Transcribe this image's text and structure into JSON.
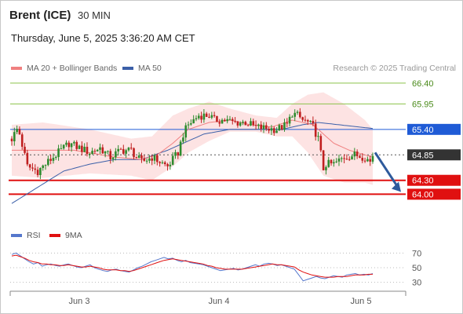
{
  "header": {
    "instrument": "Brent (ICE)",
    "timeframe": "30 MIN",
    "timestamp": "Thursday, June 5, 2025 3:36:20 AM CET"
  },
  "legend": {
    "ma20_label": "MA 20 + Bollinger Bands",
    "ma50_label": "MA 50",
    "credit": "Research © 2025 Trading Central"
  },
  "rsi_legend": {
    "rsi_label": "RSI",
    "ma_label": "9MA"
  },
  "colors": {
    "ma20": "#f08080",
    "band": "#fde3e3",
    "ma50": "#3b5fa8",
    "up": "#2e8b2e",
    "down": "#c02020",
    "resistance": "#8bc34a",
    "pivot": "#1f5bd6",
    "support": "#e01010",
    "arrow": "#2e5a9c"
  },
  "chart_data": [
    {
      "type": "candlestick",
      "x_labels": [
        "Jun 3",
        "Jun 4",
        "Jun 5"
      ],
      "ylim": [
        63.6,
        66.55
      ],
      "levels": [
        {
          "value": 66.4,
          "label": "66.40",
          "kind": "resistance"
        },
        {
          "value": 65.95,
          "label": "65.95",
          "kind": "resistance"
        },
        {
          "value": 65.4,
          "label": "65.40",
          "kind": "pivot"
        },
        {
          "value": 64.85,
          "label": "64.85",
          "kind": "last"
        },
        {
          "value": 64.3,
          "label": "64.30",
          "kind": "support"
        },
        {
          "value": 64.0,
          "label": "64.00",
          "kind": "support"
        }
      ],
      "forecast_arrow": {
        "from_value": 64.9,
        "to_value": 64.05
      },
      "close_path": [
        [
          0,
          65.2
        ],
        [
          2,
          65.4
        ],
        [
          3,
          65.3
        ],
        [
          6,
          64.6
        ],
        [
          10,
          64.5
        ],
        [
          14,
          64.7
        ],
        [
          18,
          64.9
        ],
        [
          22,
          65.1
        ],
        [
          26,
          65.0
        ],
        [
          30,
          64.9
        ],
        [
          34,
          65.0
        ],
        [
          38,
          64.8
        ],
        [
          42,
          64.95
        ],
        [
          46,
          64.95
        ],
        [
          48,
          64.8
        ],
        [
          50,
          64.7
        ],
        [
          54,
          64.8
        ],
        [
          60,
          64.6
        ],
        [
          64,
          64.9
        ],
        [
          66,
          65.3
        ],
        [
          68,
          65.5
        ],
        [
          72,
          65.7
        ],
        [
          76,
          65.7
        ],
        [
          78,
          65.6
        ],
        [
          82,
          65.6
        ],
        [
          86,
          65.55
        ],
        [
          90,
          65.55
        ],
        [
          94,
          65.45
        ],
        [
          98,
          65.42
        ],
        [
          102,
          65.4
        ],
        [
          104,
          65.45
        ],
        [
          106,
          65.5
        ],
        [
          108,
          65.75
        ],
        [
          110,
          65.7
        ],
        [
          112,
          65.6
        ],
        [
          114,
          65.55
        ],
        [
          116,
          65.45
        ],
        [
          118,
          65.2
        ],
        [
          120,
          64.55
        ],
        [
          121,
          64.65
        ],
        [
          124,
          64.65
        ],
        [
          128,
          64.8
        ],
        [
          132,
          64.85
        ],
        [
          136,
          64.8
        ],
        [
          138,
          64.7
        ],
        [
          139,
          64.85
        ]
      ],
      "ma20_path": [
        [
          0,
          64.95
        ],
        [
          12,
          64.95
        ],
        [
          24,
          64.95
        ],
        [
          40,
          64.8
        ],
        [
          50,
          64.75
        ],
        [
          56,
          64.85
        ],
        [
          62,
          65.1
        ],
        [
          68,
          65.4
        ],
        [
          76,
          65.55
        ],
        [
          84,
          65.6
        ],
        [
          92,
          65.5
        ],
        [
          100,
          65.45
        ],
        [
          108,
          65.6
        ],
        [
          116,
          65.5
        ],
        [
          120,
          65.3
        ],
        [
          124,
          65.1
        ],
        [
          130,
          64.95
        ],
        [
          139,
          64.8
        ]
      ],
      "bb_upper_path": [
        [
          0,
          65.5
        ],
        [
          12,
          65.55
        ],
        [
          30,
          65.4
        ],
        [
          46,
          65.2
        ],
        [
          54,
          65.25
        ],
        [
          62,
          65.7
        ],
        [
          68,
          65.85
        ],
        [
          76,
          66.0
        ],
        [
          84,
          65.85
        ],
        [
          94,
          65.7
        ],
        [
          102,
          65.65
        ],
        [
          108,
          65.95
        ],
        [
          114,
          66.15
        ],
        [
          120,
          66.2
        ],
        [
          128,
          65.95
        ],
        [
          136,
          65.6
        ],
        [
          139,
          65.4
        ]
      ],
      "bb_lower_path": [
        [
          0,
          64.4
        ],
        [
          12,
          64.35
        ],
        [
          30,
          64.45
        ],
        [
          46,
          64.4
        ],
        [
          54,
          64.3
        ],
        [
          62,
          64.6
        ],
        [
          68,
          64.9
        ],
        [
          76,
          65.15
        ],
        [
          84,
          65.35
        ],
        [
          94,
          65.35
        ],
        [
          102,
          65.25
        ],
        [
          108,
          65.25
        ],
        [
          114,
          64.9
        ],
        [
          120,
          64.4
        ],
        [
          128,
          64.25
        ],
        [
          136,
          64.25
        ],
        [
          139,
          64.2
        ]
      ],
      "ma50_path": [
        [
          0,
          63.8
        ],
        [
          10,
          64.15
        ],
        [
          20,
          64.5
        ],
        [
          30,
          64.65
        ],
        [
          40,
          64.75
        ],
        [
          50,
          64.75
        ],
        [
          60,
          64.95
        ],
        [
          66,
          65.1
        ],
        [
          74,
          65.3
        ],
        [
          84,
          65.4
        ],
        [
          94,
          65.4
        ],
        [
          104,
          65.4
        ],
        [
          112,
          65.5
        ],
        [
          118,
          65.55
        ],
        [
          126,
          65.5
        ],
        [
          134,
          65.45
        ],
        [
          139,
          65.42
        ]
      ]
    },
    {
      "type": "line",
      "title": "RSI",
      "y_ticks": [
        70,
        50,
        30
      ],
      "ylim": [
        20,
        80
      ],
      "series": [
        {
          "name": "RSI",
          "values": [
            68,
            70,
            66,
            62,
            58,
            55,
            57,
            52,
            54,
            55,
            53,
            52,
            54,
            55,
            53,
            51,
            50,
            52,
            54,
            50,
            48,
            46,
            45,
            47,
            48,
            46,
            45,
            44,
            47,
            50,
            52,
            55,
            58,
            60,
            62,
            64,
            62,
            63,
            60,
            58,
            60,
            57,
            56,
            55,
            54,
            52,
            50,
            48,
            46,
            47,
            48,
            49,
            47,
            48,
            50,
            52,
            54,
            52,
            55,
            56,
            55,
            53,
            54,
            52,
            50,
            48,
            40,
            32,
            34,
            36,
            38,
            36,
            35,
            37,
            39,
            38,
            37,
            40,
            41,
            42,
            40,
            41,
            40,
            42
          ]
        },
        {
          "name": "9MA",
          "values": [
            66,
            67,
            65,
            63,
            60,
            58,
            57,
            55,
            55,
            54,
            54,
            53,
            53,
            54,
            53,
            52,
            51,
            51,
            52,
            51,
            50,
            48,
            47,
            47,
            47,
            46,
            46,
            45,
            46,
            48,
            50,
            52,
            54,
            56,
            58,
            60,
            61,
            62,
            61,
            60,
            59,
            58,
            57,
            56,
            55,
            53,
            52,
            50,
            49,
            48,
            48,
            48,
            48,
            48,
            49,
            50,
            51,
            52,
            53,
            54,
            55,
            54,
            54,
            53,
            52,
            51,
            47,
            44,
            42,
            40,
            39,
            38,
            37,
            37,
            37,
            38,
            38,
            38,
            39,
            40,
            40,
            40,
            41,
            41
          ]
        }
      ]
    }
  ]
}
